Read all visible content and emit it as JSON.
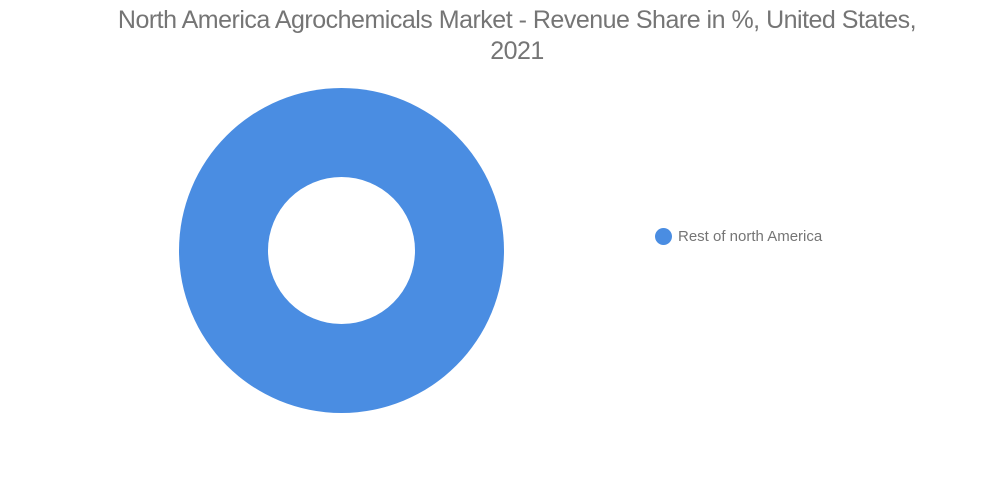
{
  "header": {
    "title_lines": [
      "North America Agrochemicals Market - Revenue Share in %, United States,",
      "2021"
    ]
  },
  "colors": {
    "series_blue": "#4A8DE2",
    "text_grey": "#757575",
    "background": "#ffffff"
  },
  "chart_data": {
    "type": "pie",
    "subtype": "donut",
    "title": "North America Agrochemicals Market - Revenue Share in %, United States, 2021",
    "categories": [
      "Rest of north America"
    ],
    "values": [
      100
    ],
    "colors": [
      "#4A8DE2"
    ],
    "unit": "%",
    "legend_position": "right",
    "donut_hole_ratio": 0.45,
    "grid": false
  }
}
